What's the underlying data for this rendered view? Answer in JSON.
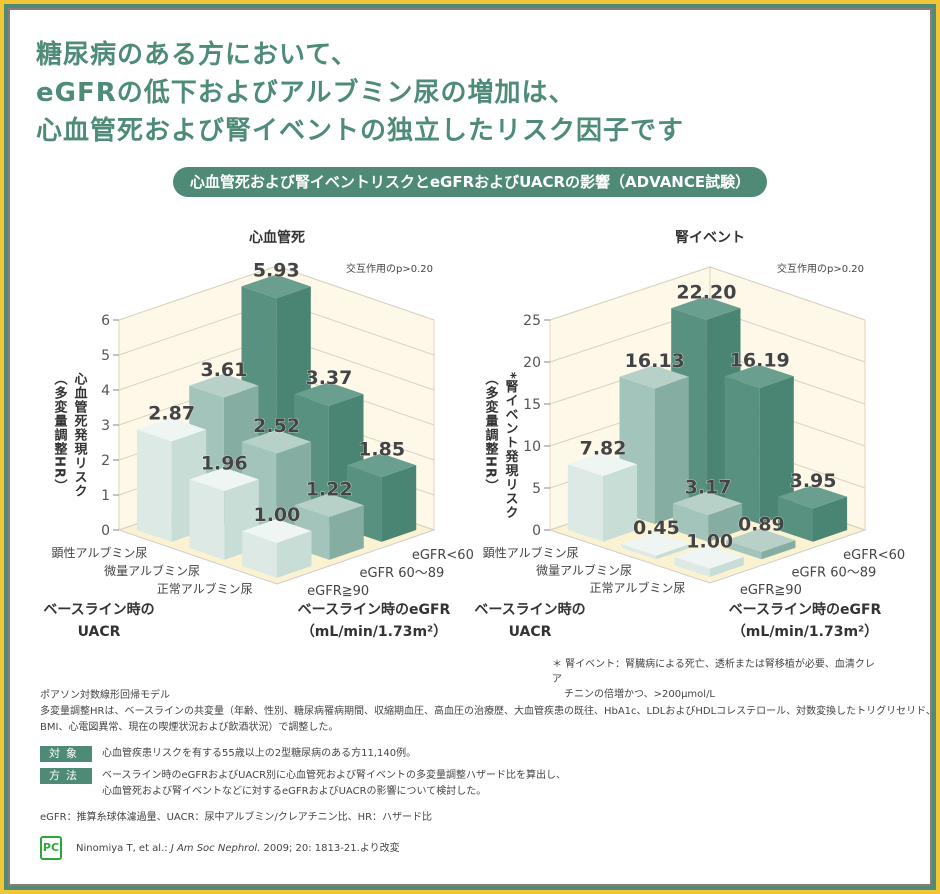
{
  "title": {
    "line1": "糖尿病のある方において、",
    "line2": "eGFRの低下およびアルブミン尿の増加は、",
    "line3": "心血管死および腎イベントの独立したリスク因子です"
  },
  "subtitle": "心血管死および腎イベントリスクとeGFRおよびUACRの影響（ADVANCE試験）",
  "colors": {
    "accent": "#4f8a77",
    "light": "#d3e5e0",
    "mid": "#92b8ad",
    "dark": "#4f8a77",
    "floor": "#fbf2d2",
    "wall": "#fdf8e8",
    "frame_outer": "#f0c636"
  },
  "chart_data": [
    {
      "type": "bar3d",
      "title": "心血管死",
      "annotation": "交互作用のp>0.20",
      "ylabel": [
        "心血管死発現リスク",
        "（多変量調整HR）"
      ],
      "ylim": [
        0,
        6
      ],
      "yticks": [
        "0",
        "1",
        "2",
        "3",
        "4",
        "5",
        "6"
      ],
      "uacr_categories": [
        "正常アルブミン尿",
        "微量アルブミン尿",
        "顕性アルブミン尿"
      ],
      "egfr_categories": [
        "eGFR≧90",
        "eGFR 60～89",
        "eGFR<60"
      ],
      "values": [
        [
          "1.00",
          "1.22",
          "1.85"
        ],
        [
          "1.96",
          "2.52",
          "3.37"
        ],
        [
          "2.87",
          "3.61",
          "5.93"
        ]
      ],
      "xlabel_uacr": [
        "ベースライン時の",
        "UACR"
      ],
      "xlabel_egfr": [
        "ベースライン時のeGFR",
        "（mL/min/1.73m²）"
      ]
    },
    {
      "type": "bar3d",
      "title": "腎イベント",
      "annotation": "交互作用のp>0.20",
      "ylabel": [
        "*腎イベント発現リスク",
        "（多変量調整HR）"
      ],
      "ylim": [
        0,
        25
      ],
      "yticks": [
        "0",
        "5",
        "10",
        "15",
        "20",
        "25"
      ],
      "uacr_categories": [
        "正常アルブミン尿",
        "微量アルブミン尿",
        "顕性アルブミン尿"
      ],
      "egfr_categories": [
        "eGFR≧90",
        "eGFR 60～89",
        "eGFR<60"
      ],
      "values": [
        [
          "1.00",
          "0.89",
          "3.95"
        ],
        [
          "0.45",
          "3.17",
          "16.19"
        ],
        [
          "7.82",
          "16.13",
          "22.20"
        ]
      ],
      "xlabel_uacr": [
        "ベースライン時の",
        "UACR"
      ],
      "xlabel_egfr": [
        "ベースライン時のeGFR",
        "（mL/min/1.73m²）"
      ]
    }
  ],
  "footnote_asterisk": {
    "line1": "＊ 腎イベント：腎臓病による死亡、透析または腎移植が必要、血清クレア",
    "line2": "チニンの倍増かつ、>200μmol/L"
  },
  "notes": {
    "model": "ポアソン対数線形回帰モデル",
    "hr1": "多変量調整HRは、ベースラインの共変量（年齢、性別、糖尿病罹病期間、収縮期血圧、高血圧の治療歴、大血管疾患の既往、HbA1c、LDLおよびHDLコレステロール、対数変換したトリグリセリド、",
    "hr2": "BMI、心電図異常、現在の喫煙状況および飲酒状況）で調整した。",
    "subject_tag": "対象",
    "subject": "心血管疾患リスクを有する55歳以上の2型糖尿病のある方11,140例。",
    "method_tag": "方法",
    "method1": "ベースライン時のeGFRおよびUACR別に心血管死および腎イベントの多変量調整ハザード比を算出し、",
    "method2": "心血管死および腎イベントなどに対するeGFRおよびUACRの影響について検討した。",
    "abbr": "eGFR：推算糸球体濾過量、UACR：尿中アルブミン/クレアチニン比、HR：ハザード比",
    "logo": "PC",
    "citation_pre": "Ninomiya T, et al.: ",
    "citation_journal": "J Am Soc Nephrol.",
    "citation_post": " 2009; 20: 1813-21.より改変"
  }
}
